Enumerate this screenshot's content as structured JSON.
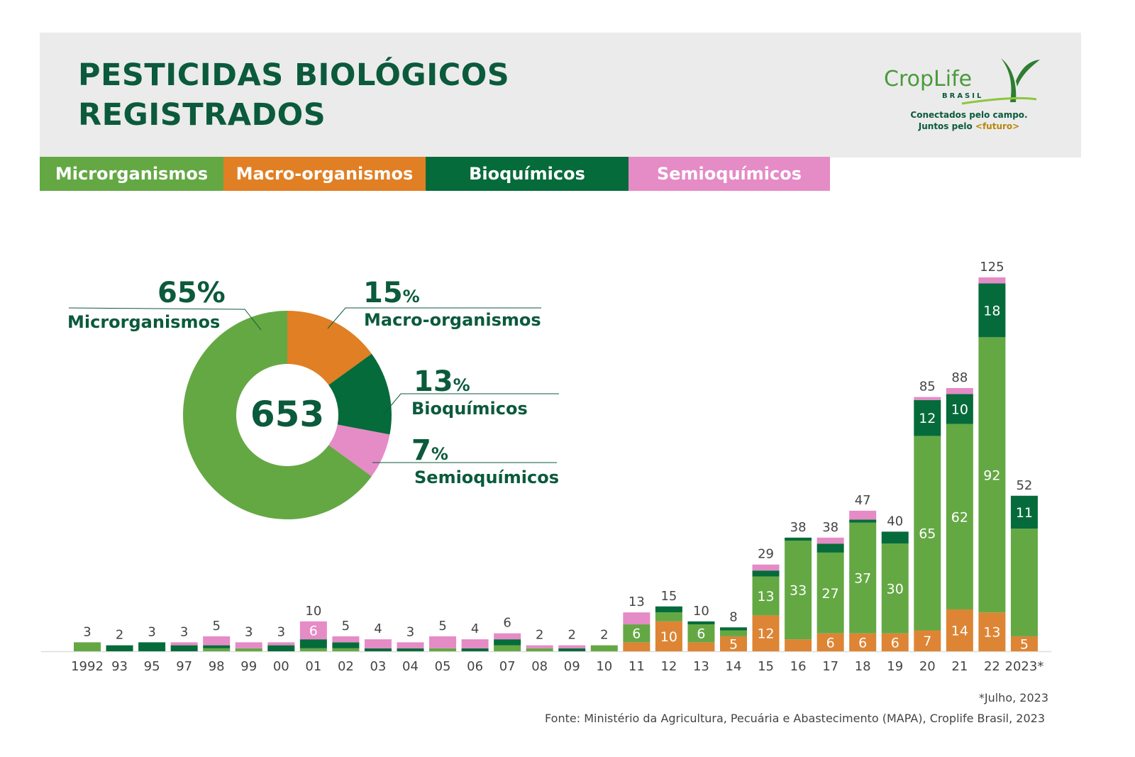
{
  "header": {
    "title_line1": "PESTICIDAS BIOLÓGICOS",
    "title_line2": "REGISTRADOS",
    "logo": {
      "word": "CropLife",
      "sub": "BRASIL",
      "tagline1": "Conectados pelo campo.",
      "tagline2": "Juntos pelo ",
      "tagline2_highlight": "<futuro>"
    }
  },
  "legend": [
    {
      "label": "Microrganismos",
      "color": "#64a844"
    },
    {
      "label": "Macro-organismos",
      "color": "#e17f24"
    },
    {
      "label": "Bioquímicos",
      "color": "#066b3a"
    },
    {
      "label": "Semioquímicos",
      "color": "#e58bc6"
    }
  ],
  "chart_data": [
    {
      "type": "pie",
      "variant": "donut",
      "total": "653",
      "slices": [
        {
          "name": "Macro-organismos",
          "value": 15,
          "pct_text": "15",
          "color": "#e17f24"
        },
        {
          "name": "Bioquímicos",
          "value": 13,
          "pct_text": "13",
          "color": "#066b3a"
        },
        {
          "name": "Semioquímicos",
          "value": 7,
          "pct_text": "7",
          "color": "#e58bc6"
        },
        {
          "name": "Microrganismos",
          "value": 65,
          "pct_text": "65",
          "color": "#64a844"
        }
      ],
      "pct_symbol": "%"
    },
    {
      "type": "bar",
      "stacked": true,
      "ylim": [
        0,
        125
      ],
      "grid": false,
      "categories": [
        "1992",
        "93",
        "95",
        "97",
        "98",
        "99",
        "00",
        "01",
        "02",
        "03",
        "04",
        "05",
        "06",
        "07",
        "08",
        "09",
        "10",
        "11",
        "12",
        "13",
        "14",
        "15",
        "16",
        "17",
        "18",
        "19",
        "20",
        "21",
        "22",
        "2023*"
      ],
      "totals": [
        "3",
        "2",
        "3",
        "3",
        "5",
        "3",
        "3",
        "10",
        "5",
        "4",
        "3",
        "5",
        "4",
        "6",
        "2",
        "2",
        "2",
        "13",
        "15",
        "10",
        "8",
        "29",
        "38",
        "38",
        "47",
        "40",
        "85",
        "88",
        "125",
        "52"
      ],
      "series": [
        {
          "name": "Macro-organismos",
          "color": "#dd8535",
          "values": [
            0,
            0,
            0,
            0,
            0,
            0,
            0,
            0,
            0,
            0,
            0,
            0,
            0,
            0,
            0,
            0,
            0,
            3,
            10,
            3,
            5,
            12,
            4,
            6,
            6,
            6,
            7,
            14,
            13,
            5
          ],
          "data_labels": [
            "",
            "",
            "",
            "",
            "",
            "",
            "",
            "",
            "",
            "",
            "",
            "",
            "",
            "",
            "",
            "",
            "",
            "",
            "10",
            "",
            "5",
            "12",
            "",
            "6",
            "6",
            "6",
            "7",
            "14",
            "13",
            "5"
          ]
        },
        {
          "name": "Microrganismos",
          "color": "#64a844",
          "values": [
            3,
            0,
            0,
            0,
            1,
            1,
            0,
            1,
            1,
            0,
            0,
            1,
            0,
            2,
            1,
            0,
            2,
            6,
            3,
            6,
            2,
            13,
            33,
            27,
            37,
            30,
            65,
            62,
            92,
            36
          ],
          "data_labels": [
            "",
            "",
            "",
            "",
            "",
            "",
            "",
            "",
            "",
            "",
            "",
            "",
            "",
            "",
            "",
            "",
            "",
            "6",
            "",
            "6",
            "",
            "13",
            "33",
            "27",
            "37",
            "30",
            "65",
            "62",
            "92",
            ""
          ]
        },
        {
          "name": "Bioquímicos",
          "color": "#066b3a",
          "values": [
            0,
            2,
            3,
            2,
            1,
            0,
            2,
            3,
            2,
            1,
            1,
            0,
            1,
            2,
            0,
            1,
            0,
            0,
            2,
            1,
            1,
            2,
            1,
            3,
            1,
            4,
            12,
            10,
            18,
            11
          ],
          "data_labels": [
            "",
            "",
            "",
            "",
            "",
            "",
            "",
            "",
            "",
            "",
            "",
            "",
            "",
            "",
            "",
            "",
            "",
            "",
            "",
            "",
            "",
            "",
            "",
            "",
            "",
            "",
            "12",
            "10",
            "18",
            "11"
          ]
        },
        {
          "name": "Semioquímicos",
          "color": "#e58bc6",
          "values": [
            0,
            0,
            0,
            1,
            3,
            2,
            1,
            6,
            2,
            3,
            2,
            4,
            3,
            2,
            1,
            1,
            0,
            4,
            0,
            0,
            0,
            2,
            0,
            2,
            3,
            0,
            1,
            2,
            2,
            0
          ],
          "data_labels": [
            "",
            "",
            "",
            "",
            "",
            "",
            "",
            "6",
            "",
            "",
            "",
            "",
            "",
            "",
            "",
            "",
            "",
            "",
            "",
            "",
            "",
            "",
            "",
            "",
            "",
            "",
            "",
            "",
            "",
            ""
          ]
        }
      ]
    }
  ],
  "footnote": "*Julho, 2023",
  "source": "Fonte: Ministério da Agricultura, Pecuária e Abastecimento (MAPA), Croplife Brasil, 2023"
}
